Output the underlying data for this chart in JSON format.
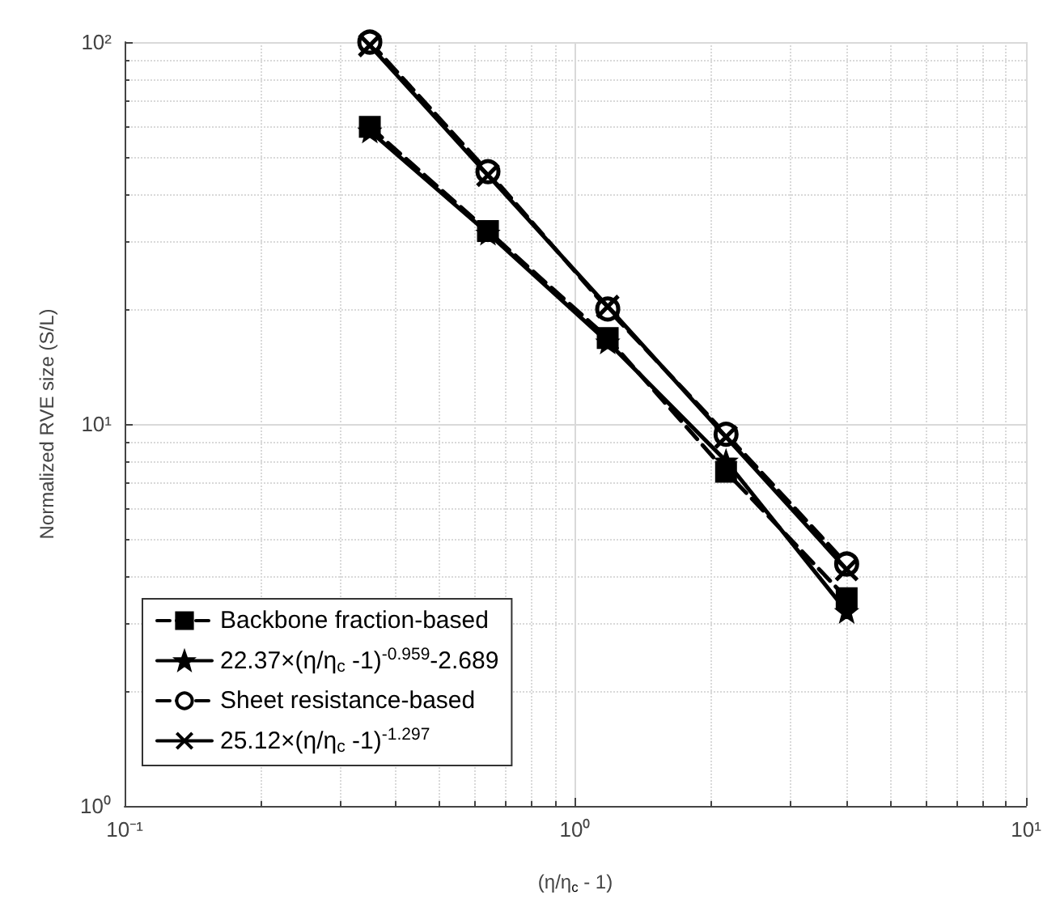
{
  "chart_data": {
    "type": "line",
    "xlabel": "(η/η$_{c}$ - 1)",
    "ylabel": "Normalized RVE size (S/L)",
    "x": [
      0.35,
      0.64,
      1.18,
      2.16,
      4.0
    ],
    "series": [
      {
        "name": "Backbone fraction-based",
        "color": "#000000",
        "marker": "square",
        "line_style": "dashed",
        "values": [
          60,
          32,
          16.8,
          7.5,
          3.5
        ]
      },
      {
        "name": "22.37×(η/η$_{c}$ -1)$^{-0.959}$-2.689",
        "color": "#000000",
        "marker": "star",
        "line_style": "solid",
        "values": [
          58.5,
          31.6,
          16.4,
          8.0,
          3.23
        ]
      },
      {
        "name": "Sheet resistance-based",
        "color": "#000000",
        "marker": "circle",
        "line_style": "dashed",
        "values": [
          100,
          45.8,
          20,
          9.4,
          4.3
        ]
      },
      {
        "name": "25.12×(η/η$_{c}$ -1)$^{-1.297}$",
        "color": "#000000",
        "marker": "cross",
        "line_style": "solid",
        "values": [
          98.0,
          44.8,
          20.3,
          9.25,
          4.16
        ]
      }
    ],
    "log": "xy",
    "xlim": [
      0.1,
      10
    ],
    "ylim": [
      1,
      100
    ],
    "xticks": [
      {
        "value": 0.1,
        "label": "10⁻¹"
      },
      {
        "value": 1,
        "label": "10⁰"
      },
      {
        "value": 10,
        "label": "10¹"
      }
    ],
    "yticks": [
      {
        "value": 1,
        "label": "10⁰"
      },
      {
        "value": 10,
        "label": "10¹"
      },
      {
        "value": 100,
        "label": "10²"
      }
    ],
    "grid": true,
    "legend": "bottom left"
  }
}
